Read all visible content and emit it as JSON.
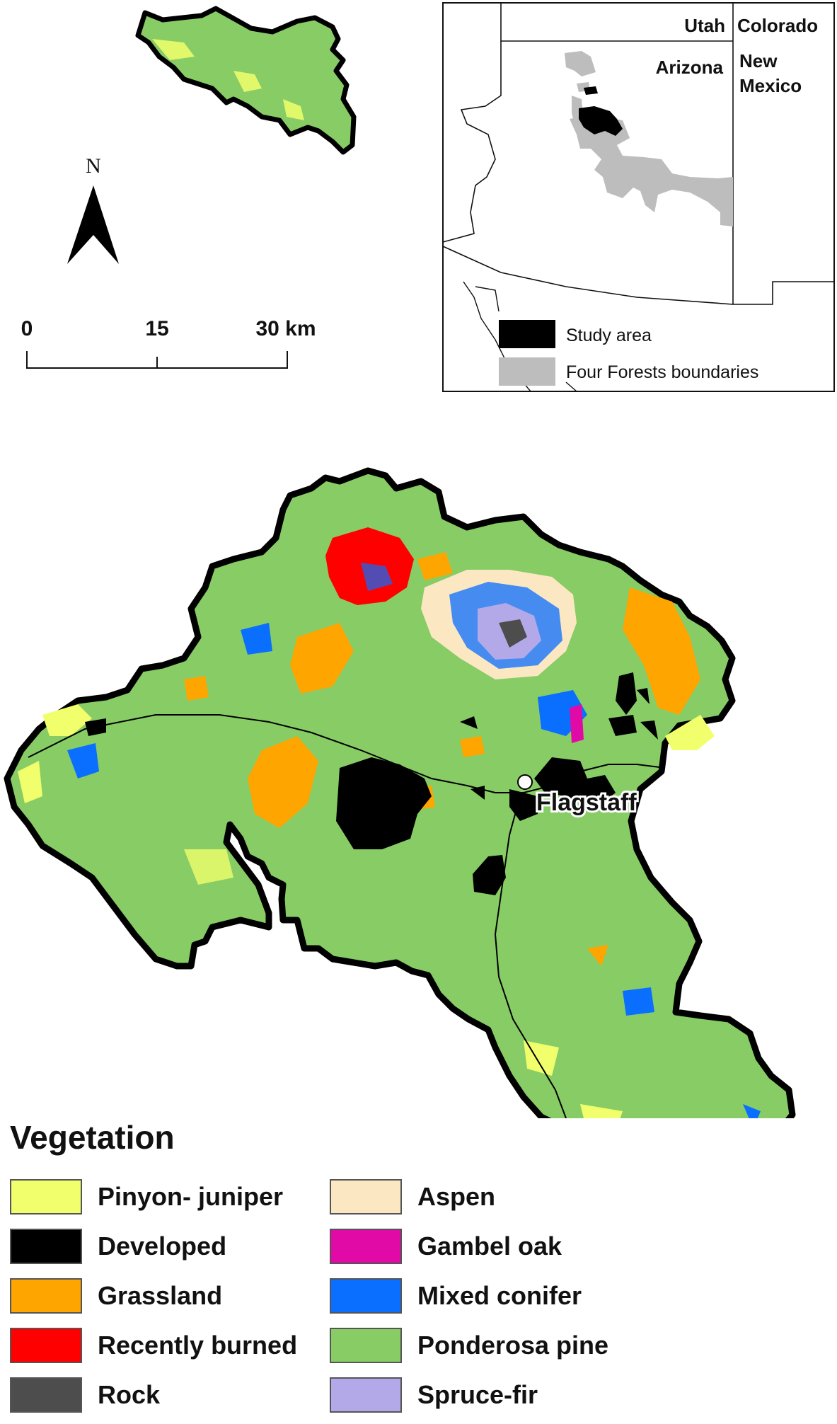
{
  "north_arrow": {
    "label": "N"
  },
  "scale_bar": {
    "ticks": [
      "0",
      "15"
    ],
    "end_label": "30 km"
  },
  "inset": {
    "states": {
      "utah": "Utah",
      "colorado": "Colorado",
      "arizona": "Arizona",
      "new_mexico_1": "New",
      "new_mexico_2": "Mexico"
    },
    "legend": {
      "study_area": "Study area",
      "four_forests": "Four Forests boundaries"
    },
    "colors": {
      "study_area": "#000000",
      "four_forests": "#bdbdbd"
    }
  },
  "main_map": {
    "city_label": "Flagstaff"
  },
  "legend": {
    "title": "Vegetation",
    "items": [
      {
        "label": "Pinyon- juniper",
        "color": "#f0ff6b"
      },
      {
        "label": "Developed",
        "color": "#000000"
      },
      {
        "label": "Grassland",
        "color": "#ffa500"
      },
      {
        "label": "Recently burned",
        "color": "#ff0000"
      },
      {
        "label": "Rock",
        "color": "#4d4d4d"
      },
      {
        "label": "Aspen",
        "color": "#fbe8c3"
      },
      {
        "label": "Gambel oak",
        "color": "#e20aa6"
      },
      {
        "label": "Mixed conifer",
        "color": "#0a6eff"
      },
      {
        "label": "Ponderosa pine",
        "color": "#88cc66"
      },
      {
        "label": "Spruce-fir",
        "color": "#b3a9e8"
      }
    ]
  }
}
